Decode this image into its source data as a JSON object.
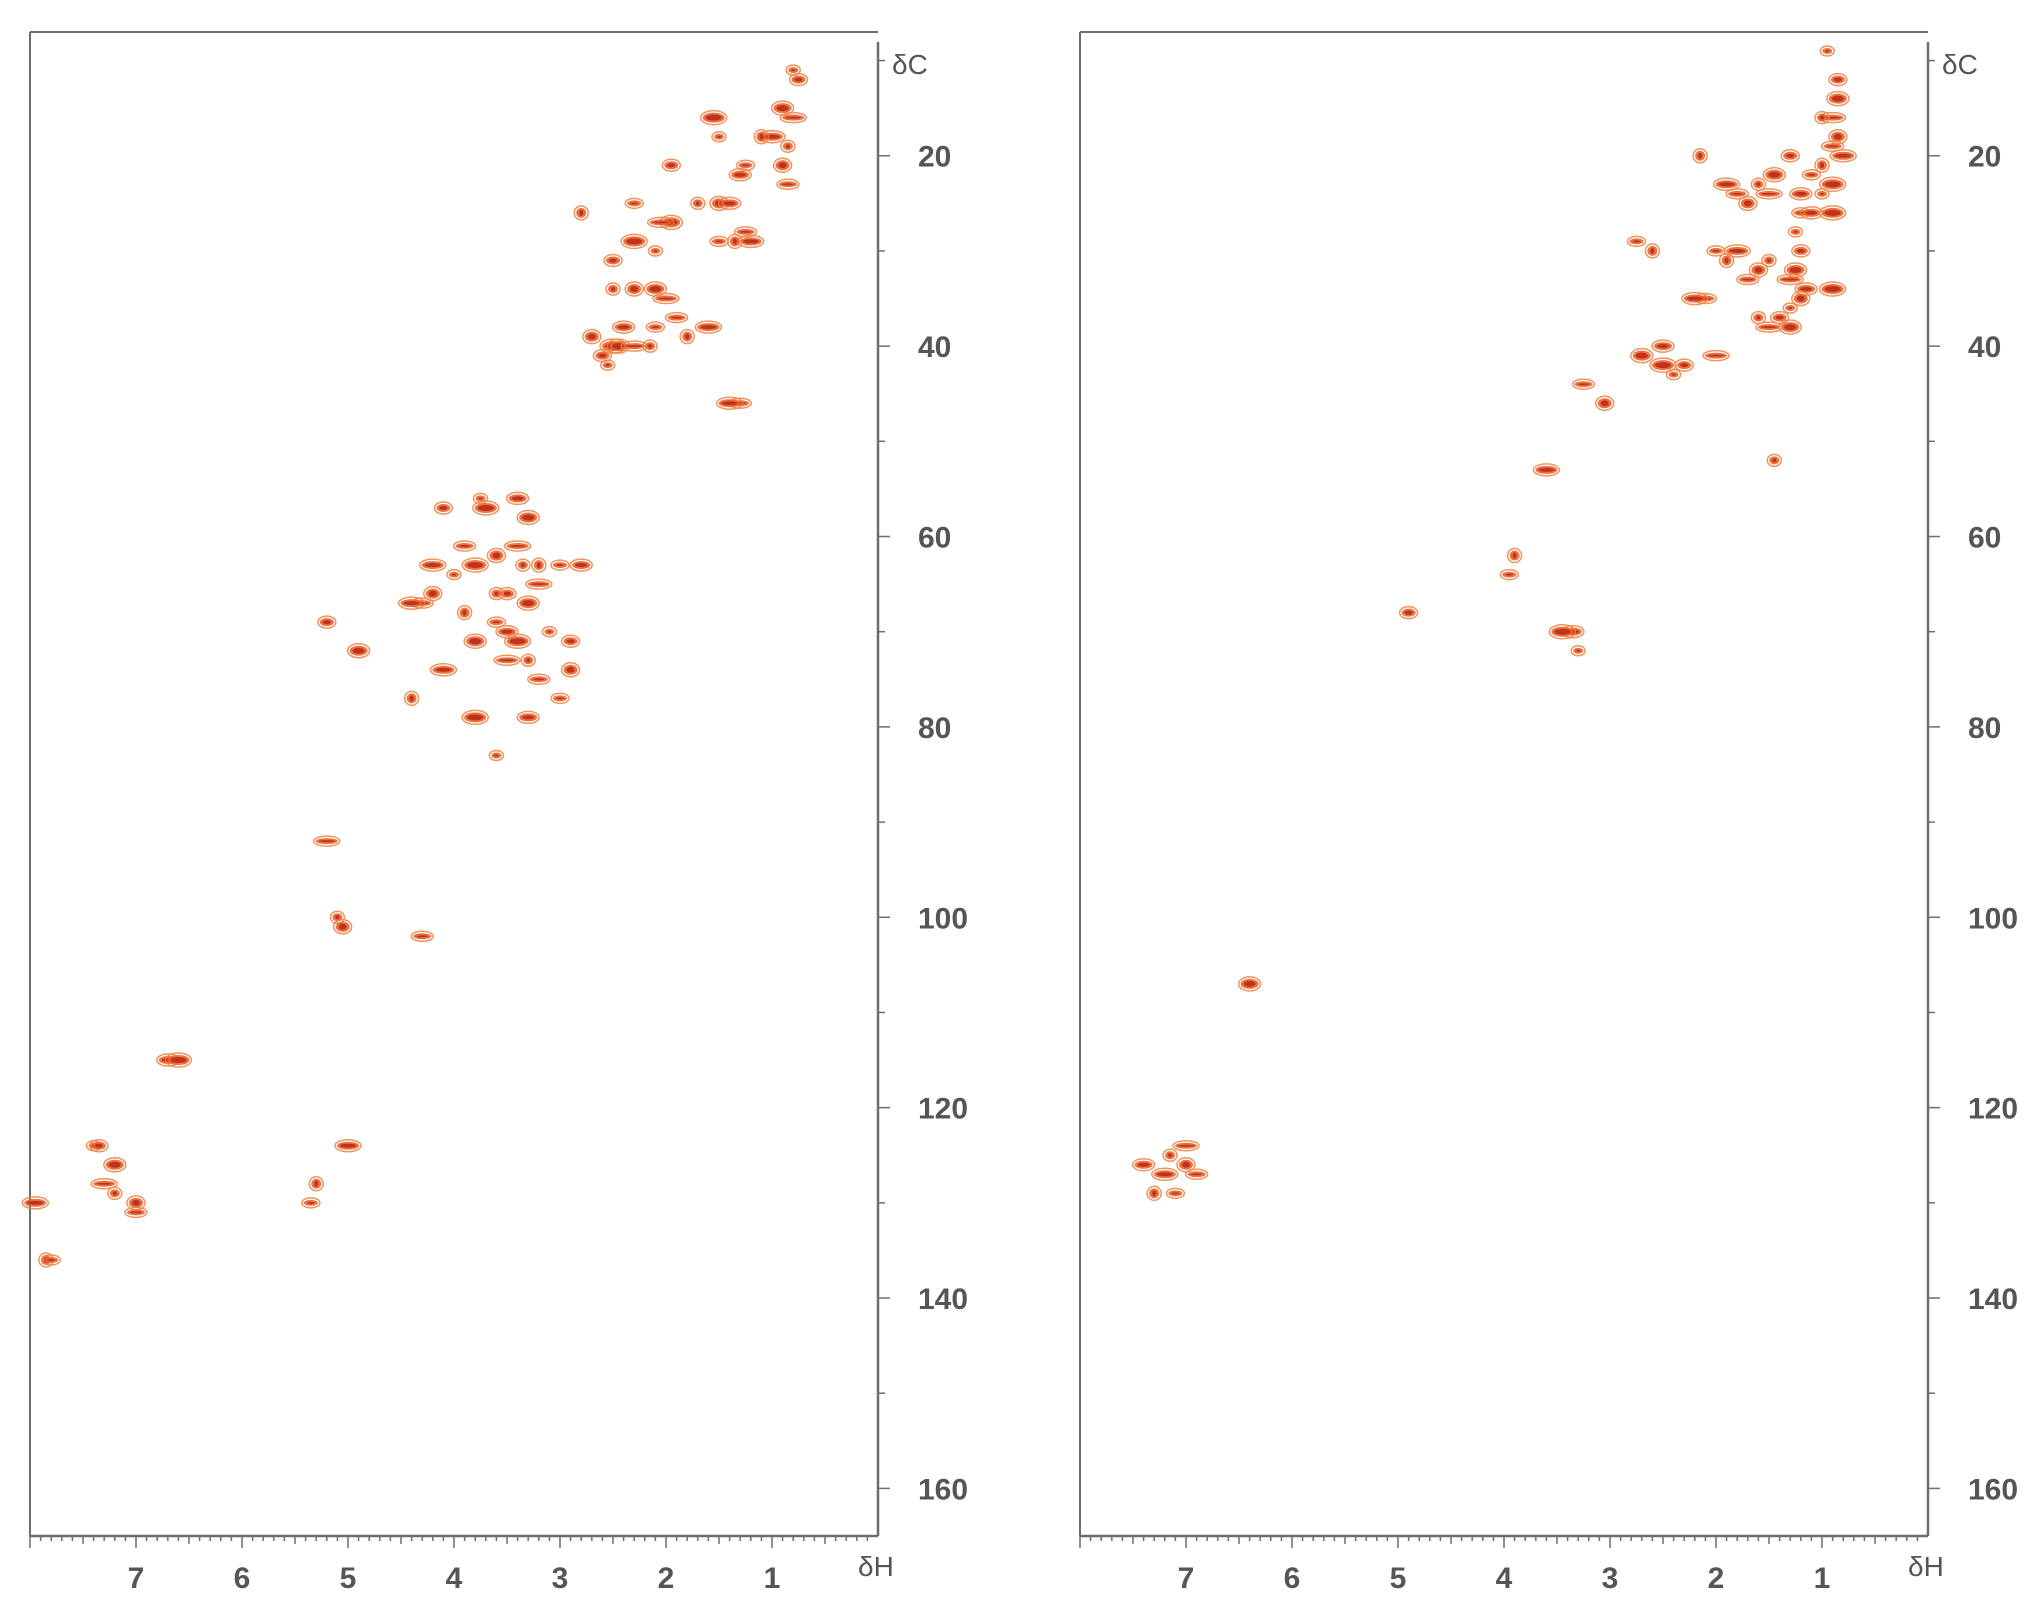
{
  "chart_data": [
    {
      "type": "scatter",
      "title": "",
      "xlabel": "δH",
      "ylabel": "δC",
      "xlim": [
        8.0,
        0.0
      ],
      "ylim": [
        165,
        7
      ],
      "x_ticks": [
        "7",
        "6",
        "5",
        "4",
        "3",
        "2",
        "1"
      ],
      "y_ticks": [
        "20",
        "40",
        "60",
        "80",
        "100",
        "120",
        "140",
        "160"
      ],
      "grid": false,
      "points": [
        [
          0.8,
          11
        ],
        [
          0.75,
          12
        ],
        [
          0.9,
          15
        ],
        [
          0.8,
          16
        ],
        [
          0.85,
          19
        ],
        [
          0.9,
          21
        ],
        [
          0.85,
          23
        ],
        [
          1.0,
          18
        ],
        [
          1.1,
          18
        ],
        [
          1.25,
          21
        ],
        [
          1.3,
          22
        ],
        [
          1.55,
          16
        ],
        [
          1.5,
          18
        ],
        [
          1.95,
          21
        ],
        [
          1.95,
          27
        ],
        [
          2.05,
          27
        ],
        [
          1.7,
          25
        ],
        [
          1.5,
          25
        ],
        [
          1.25,
          28
        ],
        [
          1.2,
          29
        ],
        [
          1.35,
          29
        ],
        [
          1.5,
          29
        ],
        [
          1.4,
          25
        ],
        [
          2.3,
          29
        ],
        [
          2.1,
          30
        ],
        [
          2.5,
          31
        ],
        [
          2.1,
          34
        ],
        [
          2.0,
          35
        ],
        [
          2.5,
          34
        ],
        [
          2.3,
          34
        ],
        [
          1.9,
          37
        ],
        [
          1.6,
          38
        ],
        [
          1.8,
          39
        ],
        [
          2.1,
          38
        ],
        [
          2.4,
          38
        ],
        [
          2.5,
          40
        ],
        [
          2.55,
          42
        ],
        [
          2.6,
          41
        ],
        [
          2.45,
          40
        ],
        [
          2.3,
          40
        ],
        [
          2.15,
          40
        ],
        [
          2.7,
          39
        ],
        [
          1.3,
          46
        ],
        [
          1.4,
          46
        ],
        [
          2.8,
          26
        ],
        [
          2.3,
          25
        ],
        [
          3.4,
          56
        ],
        [
          3.7,
          57
        ],
        [
          3.75,
          56
        ],
        [
          4.1,
          57
        ],
        [
          3.3,
          58
        ],
        [
          3.4,
          61
        ],
        [
          3.35,
          63
        ],
        [
          3.6,
          62
        ],
        [
          3.9,
          61
        ],
        [
          4.2,
          63
        ],
        [
          3.2,
          63
        ],
        [
          3.0,
          63
        ],
        [
          2.8,
          63
        ],
        [
          3.8,
          63
        ],
        [
          4.0,
          64
        ],
        [
          3.5,
          66
        ],
        [
          3.3,
          67
        ],
        [
          3.2,
          65
        ],
        [
          3.6,
          66
        ],
        [
          4.2,
          66
        ],
        [
          4.3,
          67
        ],
        [
          4.4,
          67
        ],
        [
          3.9,
          68
        ],
        [
          3.6,
          69
        ],
        [
          3.5,
          70
        ],
        [
          3.4,
          71
        ],
        [
          3.1,
          70
        ],
        [
          2.9,
          71
        ],
        [
          3.8,
          71
        ],
        [
          3.5,
          73
        ],
        [
          3.3,
          73
        ],
        [
          2.9,
          74
        ],
        [
          3.2,
          75
        ],
        [
          4.1,
          74
        ],
        [
          4.4,
          77
        ],
        [
          3.0,
          77
        ],
        [
          3.3,
          79
        ],
        [
          3.8,
          79
        ],
        [
          3.6,
          83
        ],
        [
          5.2,
          69
        ],
        [
          4.9,
          72
        ],
        [
          5.2,
          92
        ],
        [
          5.1,
          100
        ],
        [
          5.05,
          101
        ],
        [
          4.3,
          102
        ],
        [
          5.0,
          124
        ],
        [
          5.3,
          128
        ],
        [
          5.35,
          130
        ],
        [
          6.7,
          115
        ],
        [
          6.6,
          115
        ],
        [
          7.4,
          124
        ],
        [
          7.35,
          124
        ],
        [
          7.2,
          126
        ],
        [
          7.3,
          128
        ],
        [
          7.2,
          129
        ],
        [
          7.0,
          130
        ],
        [
          7.0,
          131
        ],
        [
          7.95,
          130
        ],
        [
          7.85,
          136
        ],
        [
          7.8,
          136
        ]
      ]
    },
    {
      "type": "scatter",
      "title": "",
      "xlabel": "δH",
      "ylabel": "δC",
      "xlim": [
        8.0,
        0.0
      ],
      "ylim": [
        165,
        7
      ],
      "x_ticks": [
        "7",
        "6",
        "5",
        "4",
        "3",
        "2",
        "1"
      ],
      "y_ticks": [
        "20",
        "40",
        "60",
        "80",
        "100",
        "120",
        "140",
        "160"
      ],
      "grid": false,
      "points": [
        [
          0.95,
          9
        ],
        [
          0.85,
          12
        ],
        [
          0.85,
          14
        ],
        [
          0.9,
          16
        ],
        [
          1.0,
          16
        ],
        [
          0.85,
          18
        ],
        [
          0.9,
          19
        ],
        [
          0.8,
          20
        ],
        [
          1.0,
          21
        ],
        [
          1.1,
          22
        ],
        [
          1.2,
          24
        ],
        [
          0.9,
          23
        ],
        [
          1.0,
          24
        ],
        [
          1.3,
          20
        ],
        [
          1.45,
          22
        ],
        [
          1.5,
          24
        ],
        [
          1.6,
          23
        ],
        [
          1.7,
          25
        ],
        [
          1.8,
          24
        ],
        [
          1.9,
          23
        ],
        [
          2.15,
          20
        ],
        [
          1.2,
          26
        ],
        [
          1.1,
          26
        ],
        [
          0.9,
          26
        ],
        [
          1.25,
          28
        ],
        [
          1.2,
          30
        ],
        [
          1.25,
          32
        ],
        [
          1.3,
          33
        ],
        [
          1.5,
          31
        ],
        [
          1.6,
          32
        ],
        [
          1.7,
          33
        ],
        [
          1.8,
          30
        ],
        [
          1.9,
          31
        ],
        [
          2.0,
          30
        ],
        [
          1.15,
          34
        ],
        [
          0.9,
          34
        ],
        [
          1.3,
          36
        ],
        [
          1.4,
          37
        ],
        [
          1.3,
          38
        ],
        [
          1.5,
          38
        ],
        [
          1.6,
          37
        ],
        [
          1.2,
          35
        ],
        [
          2.1,
          35
        ],
        [
          2.2,
          35
        ],
        [
          2.6,
          30
        ],
        [
          2.75,
          29
        ],
        [
          2.5,
          40
        ],
        [
          2.5,
          42
        ],
        [
          2.4,
          43
        ],
        [
          2.3,
          42
        ],
        [
          2.7,
          41
        ],
        [
          2.0,
          41
        ],
        [
          1.45,
          52
        ],
        [
          3.05,
          46
        ],
        [
          3.25,
          44
        ],
        [
          3.6,
          53
        ],
        [
          3.9,
          62
        ],
        [
          3.95,
          64
        ],
        [
          3.35,
          70
        ],
        [
          3.45,
          70
        ],
        [
          3.3,
          72
        ],
        [
          4.9,
          68
        ],
        [
          6.4,
          107
        ],
        [
          7.0,
          124
        ],
        [
          7.15,
          125
        ],
        [
          7.0,
          126
        ],
        [
          6.9,
          127
        ],
        [
          7.2,
          127
        ],
        [
          7.3,
          129
        ],
        [
          7.1,
          129
        ],
        [
          7.4,
          126
        ]
      ]
    }
  ]
}
